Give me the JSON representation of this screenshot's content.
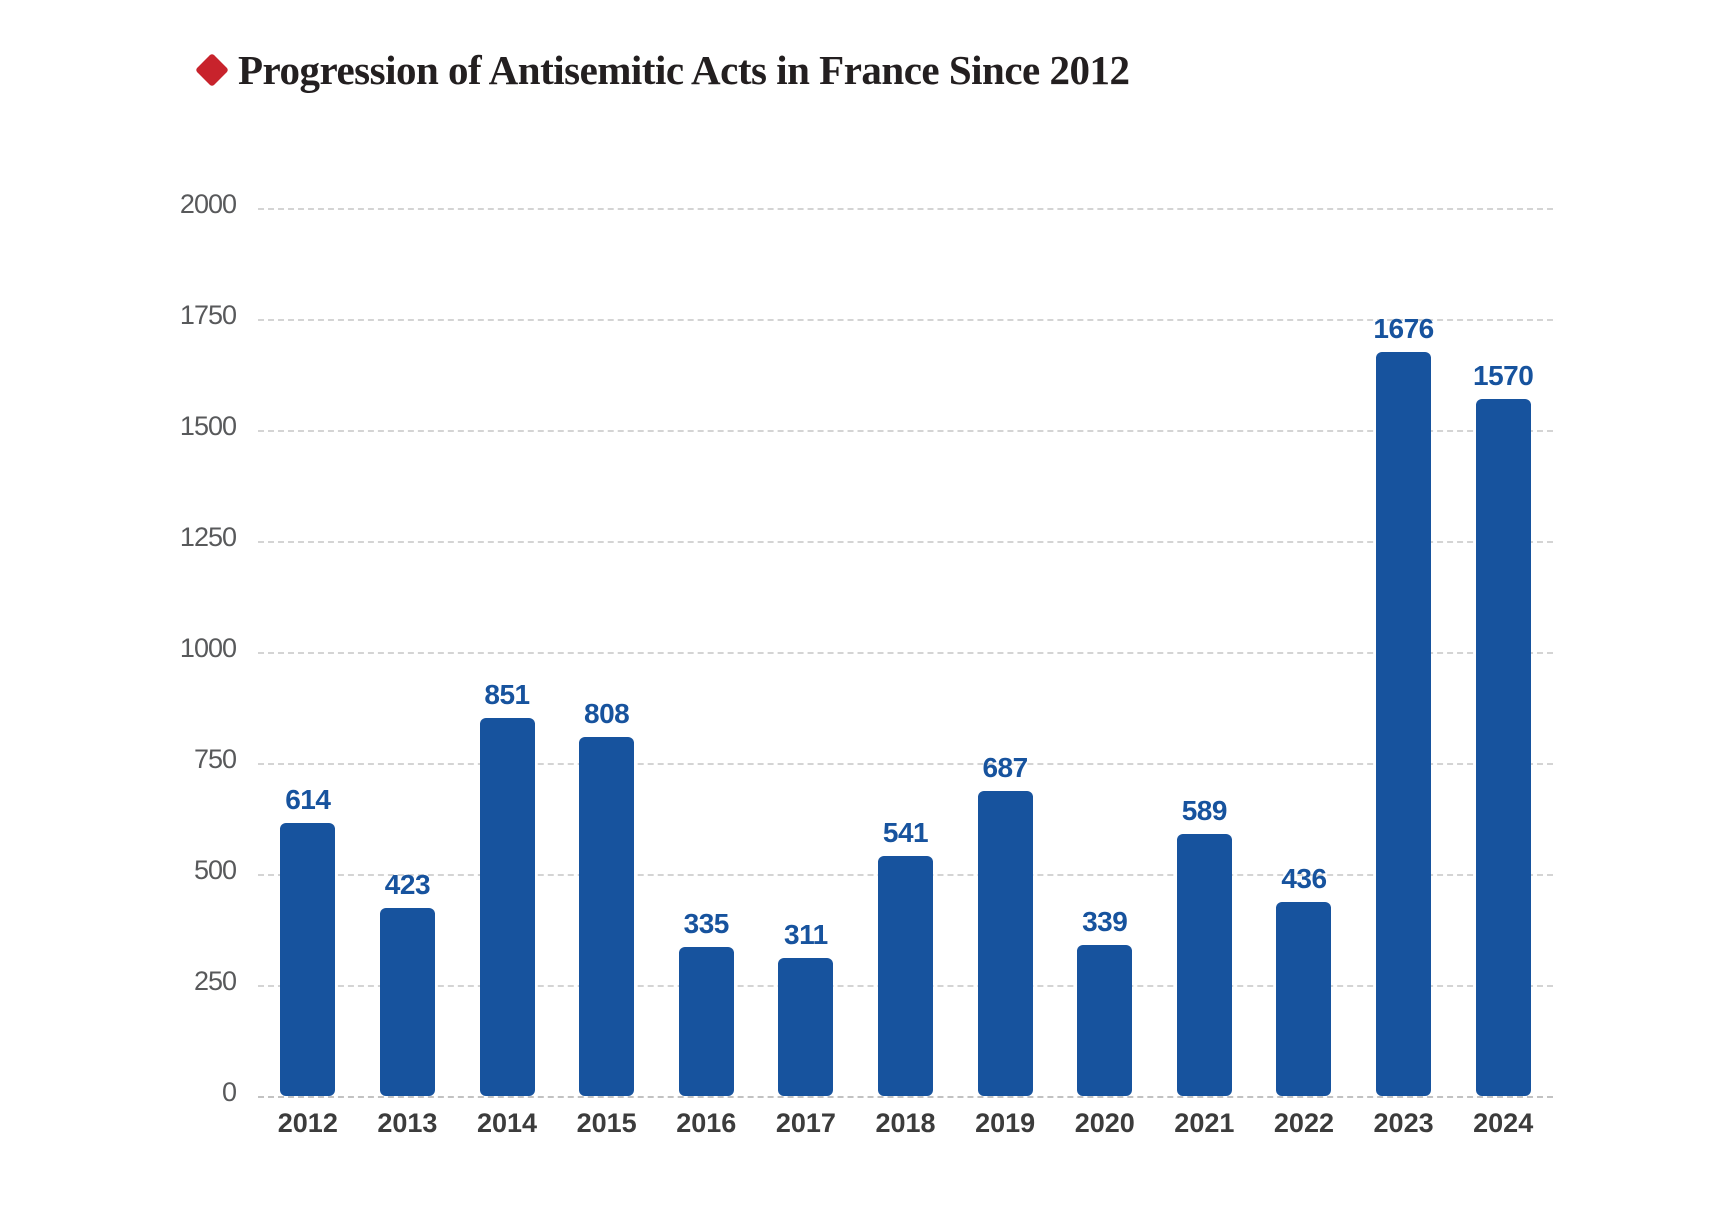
{
  "header": {
    "title": "Progression of Antisemitic Acts in France Since 2012",
    "bullet_icon": "red-diamond",
    "bullet_color": "#c8232c",
    "title_color": "#231f20"
  },
  "chart_data": {
    "type": "bar",
    "title": "Progression of Antisemitic Acts in France Since 2012",
    "categories": [
      "2012",
      "2013",
      "2014",
      "2015",
      "2016",
      "2017",
      "2018",
      "2019",
      "2020",
      "2021",
      "2022",
      "2023",
      "2024"
    ],
    "values": [
      614,
      423,
      851,
      808,
      335,
      311,
      541,
      687,
      339,
      589,
      436,
      1676,
      1570
    ],
    "xlabel": "",
    "ylabel": "",
    "ylim": [
      0,
      2000
    ],
    "yticks": [
      0,
      250,
      500,
      750,
      1000,
      1250,
      1500,
      1750,
      2000
    ],
    "ytick_labels": [
      "0",
      "250",
      "500",
      "750",
      "1000",
      "1250",
      "1500",
      "1750",
      "2000"
    ],
    "grid": "horizontal-dashed",
    "legend_position": "none",
    "value_labels": "above-bars",
    "bar_color": "#17539e",
    "value_label_color": "#17539e",
    "ytick_color": "#58595b",
    "xtick_color": "#3c3c3c",
    "gridline_color": "#d4d4d4",
    "baseline_color": "#c2c2c2"
  }
}
